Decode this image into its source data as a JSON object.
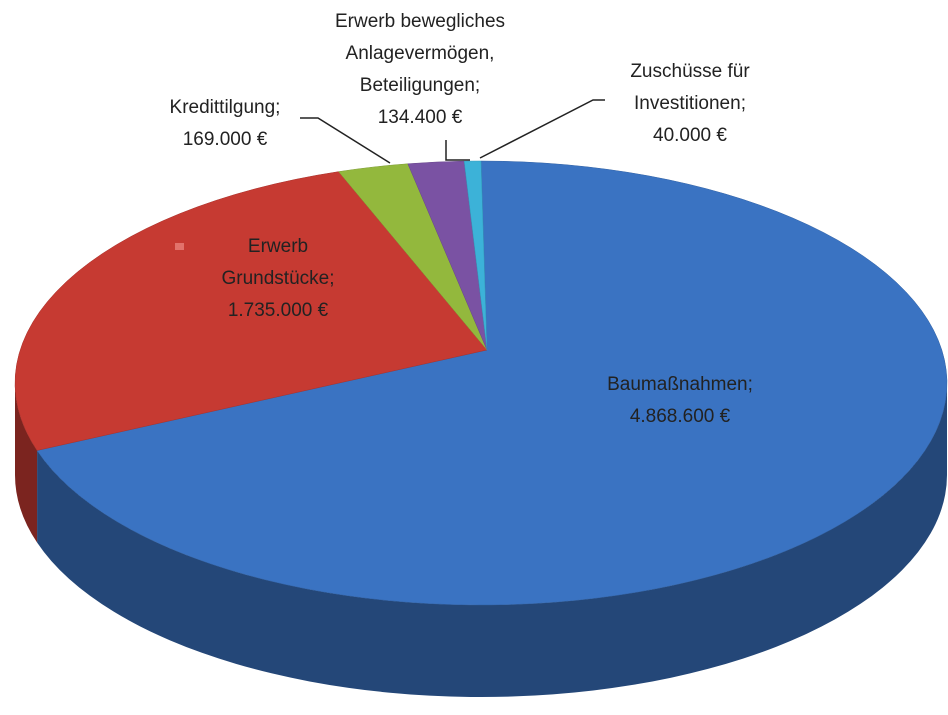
{
  "chart_data": {
    "type": "pie",
    "three_d": true,
    "categories": [
      "Baumaßnahmen;",
      "Erwerb Grundstücke;",
      "Kredittilgung;",
      "Erwerb bewegliches Anlagevermögen, Beteiligungen;",
      "Zuschüsse für Investitionen;"
    ],
    "values": [
      4868600,
      1735000,
      169000,
      134400,
      40000
    ],
    "value_labels": [
      "4.868.600 €",
      "1.735.000 €",
      "169.000 €",
      "134.400 €",
      "40.000 €"
    ],
    "colors": [
      "#3a73c2",
      "#c63a32",
      "#93b83d",
      "#7a52a3",
      "#3cb2d8"
    ]
  }
}
